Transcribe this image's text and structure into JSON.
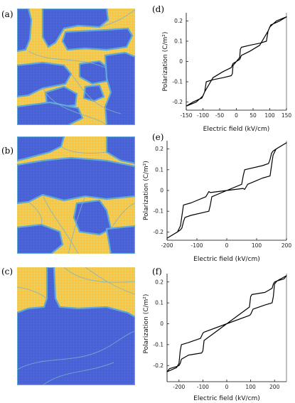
{
  "panel_labels": [
    "(a)",
    "(b)",
    "(c)",
    "(d)",
    "(e)",
    "(f)"
  ],
  "colors": {
    "domain_up": "#f7c94a",
    "domain_down": "#4a63d6",
    "domain_wall": "#5fa8d8",
    "curve": "#000000"
  },
  "chart_data": [
    {
      "panel": "(d)",
      "type": "line",
      "xlabel": "Electric field (kV/cm)",
      "ylabel": "Polarization (C/m²)",
      "xlim": [
        -150,
        150
      ],
      "ylim": [
        -0.24,
        0.24
      ],
      "xticks": [
        -150,
        -100,
        -50,
        0,
        50,
        100,
        150
      ],
      "yticks": [
        -0.2,
        -0.1,
        0,
        0.1,
        0.2
      ],
      "x": [
        -150,
        -120,
        -110,
        -103,
        -95,
        -70,
        -40,
        -15,
        -10,
        0,
        10,
        12,
        15,
        40,
        70,
        90,
        95,
        100,
        110,
        130,
        150,
        120,
        110,
        103,
        95,
        70,
        40,
        15,
        10,
        0,
        -10,
        -12,
        -15,
        -40,
        -70,
        -90,
        -95,
        -100,
        -110,
        -130,
        -150
      ],
      "y": [
        -0.22,
        -0.2,
        -0.185,
        -0.18,
        -0.15,
        -0.08,
        -0.05,
        -0.03,
        -0.01,
        0.0,
        0.02,
        0.06,
        0.07,
        0.08,
        0.09,
        0.1,
        0.15,
        0.17,
        0.185,
        0.2,
        0.22,
        0.2,
        0.185,
        0.18,
        0.15,
        0.08,
        0.05,
        0.03,
        0.01,
        0.0,
        -0.02,
        -0.06,
        -0.07,
        -0.08,
        -0.09,
        -0.1,
        -0.15,
        -0.17,
        -0.185,
        -0.2,
        -0.22
      ]
    },
    {
      "panel": "(e)",
      "type": "line",
      "xlabel": "Electric field (kV/cm)",
      "ylabel": "Polarization (C/m²)",
      "xlim": [
        -200,
        200
      ],
      "ylim": [
        -0.24,
        0.24
      ],
      "xticks": [
        -200,
        -100,
        0,
        100,
        200
      ],
      "yticks": [
        -0.2,
        -0.1,
        0,
        0.1,
        0.2
      ],
      "x": [
        -200,
        -165,
        -155,
        -150,
        -145,
        -120,
        -70,
        -60,
        -55,
        0,
        50,
        55,
        60,
        120,
        140,
        145,
        150,
        155,
        165,
        200,
        165,
        155,
        150,
        145,
        120,
        70,
        60,
        55,
        0,
        -50,
        -55,
        -60,
        -120,
        -140,
        -145,
        -150,
        -155,
        -165,
        -200
      ],
      "y": [
        -0.23,
        -0.2,
        -0.17,
        -0.12,
        -0.07,
        -0.06,
        -0.03,
        -0.005,
        -0.01,
        0.0,
        0.03,
        0.07,
        0.1,
        0.12,
        0.13,
        0.15,
        0.18,
        0.19,
        0.2,
        0.23,
        0.2,
        0.17,
        0.12,
        0.07,
        0.06,
        0.03,
        0.005,
        0.01,
        0.0,
        -0.03,
        -0.07,
        -0.1,
        -0.12,
        -0.13,
        -0.15,
        -0.18,
        -0.19,
        -0.2,
        -0.23
      ]
    },
    {
      "panel": "(f)",
      "type": "line",
      "xlabel": "Electric field (kV/cm)",
      "ylabel": "Polarization (C/m²)",
      "xlim": [
        -250,
        250
      ],
      "ylim": [
        -0.24,
        0.24
      ],
      "xticks": [
        -200,
        -100,
        0,
        100,
        200
      ],
      "yticks": [
        -0.2,
        -0.1,
        0,
        0.1,
        0.2
      ],
      "x": [
        -250,
        -210,
        -200,
        -195,
        -190,
        -160,
        -110,
        -100,
        -95,
        0,
        95,
        100,
        105,
        160,
        190,
        195,
        200,
        210,
        240,
        250,
        210,
        200,
        195,
        190,
        160,
        110,
        100,
        95,
        0,
        -95,
        -100,
        -105,
        -160,
        -190,
        -195,
        -200,
        -210,
        -240,
        -250
      ],
      "y": [
        -0.23,
        -0.21,
        -0.19,
        -0.13,
        -0.1,
        -0.09,
        -0.07,
        -0.045,
        -0.04,
        0.0,
        0.08,
        0.13,
        0.14,
        0.15,
        0.17,
        0.19,
        0.2,
        0.205,
        0.215,
        0.23,
        0.205,
        0.19,
        0.13,
        0.1,
        0.09,
        0.07,
        0.045,
        0.04,
        0.0,
        -0.08,
        -0.13,
        -0.14,
        -0.15,
        -0.17,
        -0.19,
        -0.2,
        -0.205,
        -0.215,
        -0.23
      ]
    }
  ]
}
